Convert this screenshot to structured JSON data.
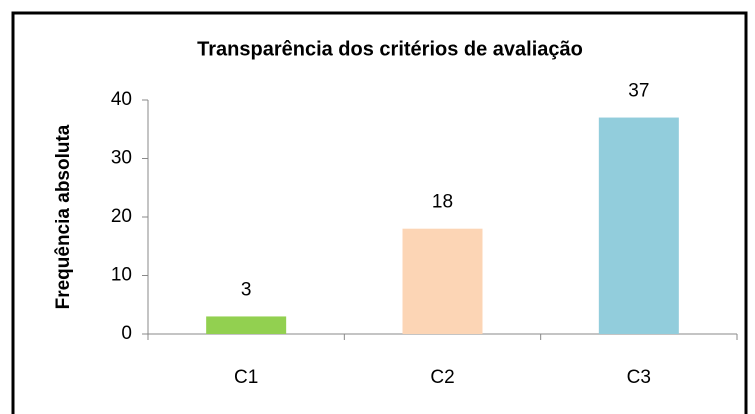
{
  "chart_data": {
    "type": "bar",
    "title": "Transparência dos critérios de avaliação",
    "y_label": "Frequência absoluta",
    "categories": [
      "C1",
      "C2",
      "C3"
    ],
    "values": [
      3,
      18,
      37
    ],
    "colors": [
      "#92d050",
      "#fcd5b5",
      "#92cddc"
    ],
    "ylim": [
      0,
      40
    ],
    "yticks": [
      0,
      10,
      20,
      30,
      40
    ],
    "grid": false
  }
}
